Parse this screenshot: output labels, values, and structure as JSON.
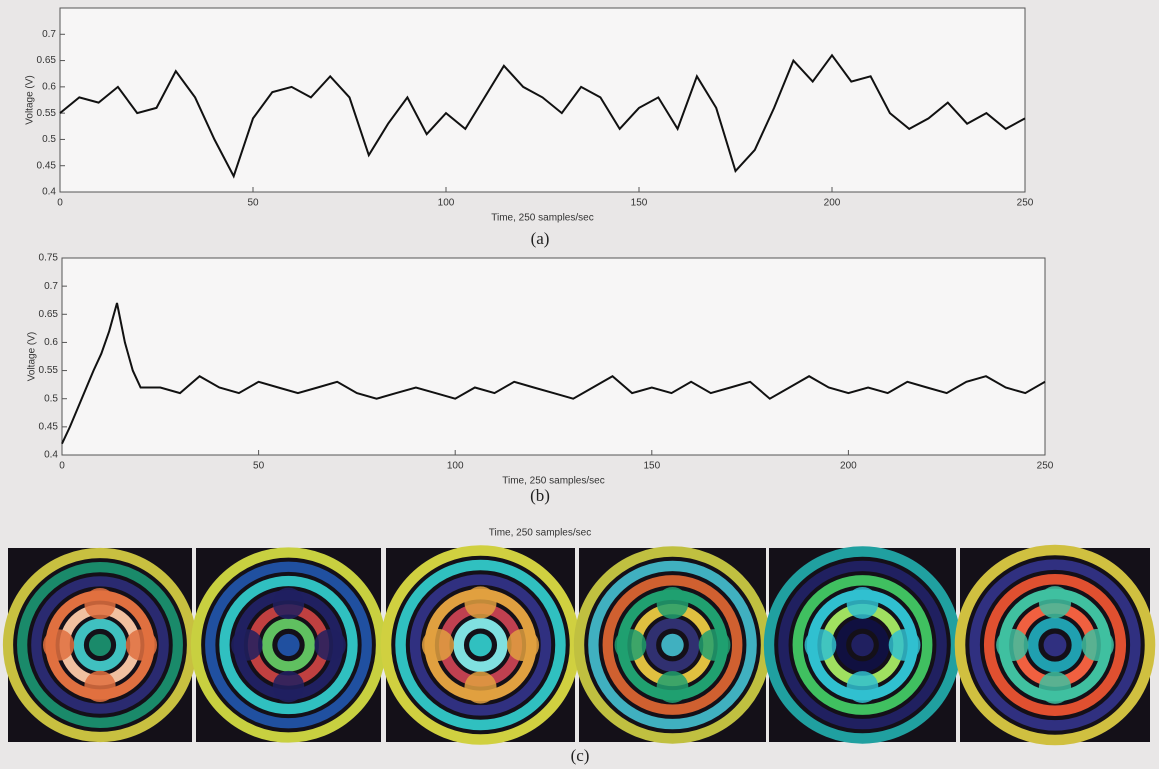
{
  "chart_data": [
    {
      "type": "line",
      "xlabel": "Time, 250 samples/sec",
      "ylabel": "Voltage (V)",
      "caption": "(a)",
      "x": [
        0,
        5,
        10,
        15,
        20,
        25,
        30,
        35,
        40,
        45,
        50,
        55,
        60,
        65,
        70,
        75,
        80,
        85,
        90,
        95,
        100,
        105,
        110,
        115,
        120,
        125,
        130,
        135,
        140,
        145,
        150,
        155,
        160,
        165,
        170,
        175,
        180,
        185,
        190,
        195,
        200,
        205,
        210,
        215,
        220,
        225,
        230,
        235,
        240,
        245,
        250
      ],
      "series": [
        {
          "color": "#111111",
          "values": [
            0.55,
            0.58,
            0.57,
            0.6,
            0.55,
            0.56,
            0.63,
            0.58,
            0.5,
            0.43,
            0.54,
            0.59,
            0.6,
            0.58,
            0.62,
            0.58,
            0.47,
            0.53,
            0.58,
            0.51,
            0.55,
            0.52,
            0.58,
            0.64,
            0.6,
            0.58,
            0.55,
            0.6,
            0.58,
            0.52,
            0.56,
            0.58,
            0.52,
            0.62,
            0.56,
            0.44,
            0.48,
            0.56,
            0.65,
            0.61,
            0.66,
            0.61,
            0.62,
            0.55,
            0.52,
            0.54,
            0.57,
            0.53,
            0.55,
            0.52,
            0.54
          ]
        }
      ],
      "xlim": [
        0,
        250
      ],
      "xticks": [
        0,
        50,
        100,
        150,
        200,
        250
      ],
      "ylim": [
        0.4,
        0.75
      ],
      "yticks": [
        0.4,
        0.45,
        0.5,
        0.55,
        0.6,
        0.65,
        0.7
      ]
    },
    {
      "type": "line",
      "xlabel": "Time, 250 samples/sec",
      "ylabel": "Voltage (V)",
      "caption": "(b)",
      "x": [
        0,
        2,
        5,
        8,
        10,
        12,
        14,
        16,
        18,
        20,
        25,
        30,
        35,
        40,
        45,
        50,
        55,
        60,
        65,
        70,
        75,
        80,
        85,
        90,
        95,
        100,
        105,
        110,
        115,
        120,
        125,
        130,
        135,
        140,
        145,
        150,
        155,
        160,
        165,
        170,
        175,
        180,
        185,
        190,
        195,
        200,
        205,
        210,
        215,
        220,
        225,
        230,
        235,
        240,
        245,
        250
      ],
      "series": [
        {
          "color": "#111111",
          "values": [
            0.42,
            0.45,
            0.5,
            0.55,
            0.58,
            0.62,
            0.67,
            0.6,
            0.55,
            0.52,
            0.52,
            0.51,
            0.54,
            0.52,
            0.51,
            0.53,
            0.52,
            0.51,
            0.52,
            0.53,
            0.51,
            0.5,
            0.51,
            0.52,
            0.51,
            0.5,
            0.52,
            0.51,
            0.53,
            0.52,
            0.51,
            0.5,
            0.52,
            0.54,
            0.51,
            0.52,
            0.51,
            0.53,
            0.51,
            0.52,
            0.53,
            0.5,
            0.52,
            0.54,
            0.52,
            0.51,
            0.52,
            0.51,
            0.53,
            0.52,
            0.51,
            0.53,
            0.54,
            0.52,
            0.51,
            0.53
          ]
        }
      ],
      "xlim": [
        0,
        250
      ],
      "xticks": [
        0,
        50,
        100,
        150,
        200,
        250
      ],
      "ylim": [
        0.4,
        0.75
      ],
      "yticks": [
        0.4,
        0.45,
        0.5,
        0.55,
        0.6,
        0.65,
        0.7,
        0.75
      ]
    }
  ],
  "image_panel": {
    "xlabel": "Time, 250 samples/sec",
    "caption": "(c)"
  }
}
